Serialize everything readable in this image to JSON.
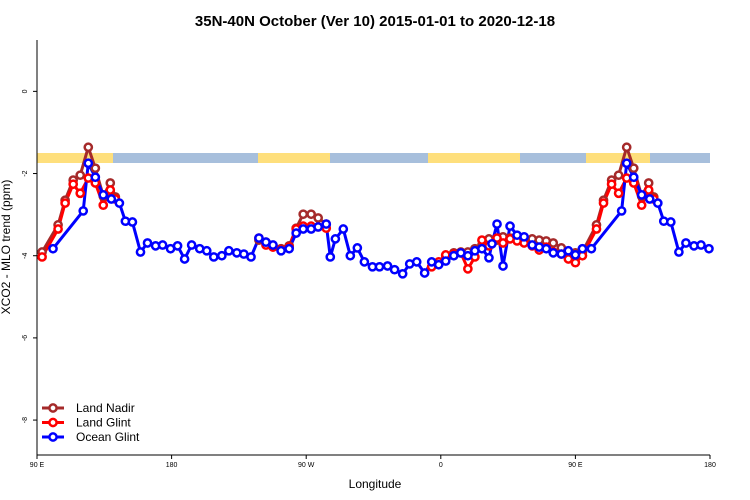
{
  "chart_data": {
    "type": "line",
    "title": "35N-40N October (Ver 10)   2015-01-01 to 2020-12-18",
    "x_label": "Longitude",
    "y_label": "XCO2 - MLO trend (ppm)",
    "xlim": [
      90,
      540
    ],
    "ylim": [
      -8.85,
      1.25
    ],
    "xticks": [
      {
        "value": 90,
        "label": "90 E"
      },
      180,
      {
        "value": 270,
        "label": "90 W"
      },
      {
        "value": 360,
        "label": "0"
      },
      {
        "value": 450,
        "label": "90 E"
      },
      {
        "value": 540,
        "label": "180"
      }
    ],
    "yticks": [
      0,
      -2,
      -4,
      -6,
      -8
    ],
    "legend": "bottom-left",
    "series": [
      {
        "name": "Land Nadir",
        "color": "#a52a2a",
        "x": [
          93.4,
          104.1,
          108.8,
          114.2,
          118.9,
          124.3,
          129.0,
          134.3,
          139.0,
          142.4,
          null,
          238.4,
          243.1,
          247.8,
          253.2,
          258.6,
          263.3,
          268.0,
          273.3,
          278.0,
          283.4,
          null,
          358.6,
          363.3,
          368.7,
          373.4,
          378.1,
          382.8,
          387.5,
          392.2,
          397.6,
          401.6,
          406.3,
          411.0,
          415.7,
          421.1,
          425.8,
          430.5,
          435.2,
          440.6,
          445.3,
          450.0,
          454.7,
          464.1,
          468.8,
          474.2,
          478.9,
          484.3,
          489.0,
          494.3,
          499.0,
          502.4
        ],
        "values": [
          -3.91,
          -3.25,
          -2.65,
          -2.16,
          -2.04,
          -1.36,
          -1.87,
          -2.55,
          -2.23,
          -2.57,
          null,
          -3.62,
          -3.67,
          -3.76,
          -3.83,
          -3.76,
          -3.33,
          -2.99,
          -2.99,
          -3.08,
          -3.23,
          null,
          -4.2,
          -4.0,
          -3.93,
          -3.91,
          -3.91,
          -3.83,
          -3.74,
          -3.59,
          -3.62,
          -3.54,
          -3.57,
          -3.57,
          -3.59,
          -3.59,
          -3.62,
          -3.64,
          -3.69,
          -3.81,
          -3.91,
          -3.93,
          -3.91,
          -3.25,
          -2.65,
          -2.16,
          -2.04,
          -1.36,
          -1.87,
          -2.55,
          -2.23,
          -2.57
        ]
      },
      {
        "name": "Land Glint",
        "color": "#ff0000",
        "x": [
          93.4,
          104.1,
          108.8,
          114.2,
          118.9,
          124.3,
          129.0,
          134.3,
          139.0,
          142.4,
          null,
          238.4,
          243.1,
          247.8,
          253.2,
          258.6,
          263.3,
          268.0,
          273.3,
          278.0,
          283.4,
          null,
          353.9,
          358.6,
          363.3,
          368.7,
          373.4,
          378.1,
          382.8,
          387.5,
          392.2,
          397.6,
          401.6,
          406.3,
          411.0,
          415.7,
          421.1,
          425.8,
          430.5,
          435.2,
          440.6,
          445.3,
          450.0,
          454.7,
          464.1,
          468.8,
          474.2,
          478.9,
          484.3,
          489.0,
          494.3,
          499.0,
          502.4
        ],
        "values": [
          -4.03,
          -3.35,
          -2.72,
          -2.26,
          -2.48,
          -2.11,
          -2.23,
          -2.77,
          -2.4,
          -2.62,
          null,
          -3.57,
          -3.74,
          -3.79,
          -3.86,
          -3.79,
          -3.35,
          -3.28,
          -3.28,
          -3.3,
          -3.33,
          null,
          -4.27,
          -4.15,
          -3.98,
          -3.96,
          -3.93,
          -4.32,
          -4.03,
          -3.62,
          -3.76,
          -3.57,
          -3.69,
          -3.59,
          -3.64,
          -3.69,
          -3.76,
          -3.86,
          -3.79,
          -3.91,
          -3.96,
          -4.08,
          -4.17,
          -4.0,
          -3.35,
          -2.72,
          -2.26,
          -2.48,
          -2.11,
          -2.23,
          -2.77,
          -2.4,
          -2.62
        ]
      },
      {
        "name": "Ocean Glint",
        "color": "#0000ff",
        "x": [
          100.7,
          120.9,
          124.3,
          129.0,
          134.3,
          139.7,
          145.1,
          149.1,
          153.8,
          159.2,
          163.9,
          169.3,
          174.0,
          179.3,
          184.0,
          188.7,
          193.4,
          198.8,
          203.5,
          208.2,
          213.6,
          218.3,
          223.6,
          228.3,
          233.1,
          238.4,
          243.1,
          247.8,
          253.2,
          258.6,
          263.3,
          268.0,
          273.3,
          278.0,
          283.4,
          286.1,
          289.5,
          294.8,
          299.5,
          304.2,
          308.9,
          314.3,
          319.0,
          324.4,
          329.1,
          334.5,
          339.2,
          343.9,
          349.2,
          353.9,
          358.6,
          363.3,
          368.7,
          373.4,
          378.1,
          382.8,
          387.5,
          392.2,
          394.2,
          397.6,
          401.6,
          406.3,
          411.0,
          415.7,
          421.1,
          425.8,
          430.5,
          435.2,
          440.6,
          445.3,
          450.0,
          454.7,
          460.7,
          480.9,
          484.3,
          489.0,
          494.3,
          499.7,
          505.1,
          509.1,
          513.8,
          519.2,
          523.9,
          529.3,
          534.0,
          539.3
        ],
        "values": [
          -3.83,
          -2.91,
          -1.75,
          -2.09,
          -2.52,
          -2.62,
          -2.72,
          -3.16,
          -3.18,
          -3.91,
          -3.69,
          -3.76,
          -3.74,
          -3.83,
          -3.76,
          -4.08,
          -3.74,
          -3.83,
          -3.88,
          -4.03,
          -4.0,
          -3.88,
          -3.93,
          -3.96,
          -4.03,
          -3.57,
          -3.67,
          -3.74,
          -3.88,
          -3.83,
          -3.45,
          -3.35,
          -3.35,
          -3.3,
          -3.23,
          -4.03,
          -3.59,
          -3.35,
          -4.0,
          -3.81,
          -4.15,
          -4.27,
          -4.27,
          -4.25,
          -4.34,
          -4.44,
          -4.2,
          -4.15,
          -4.42,
          -4.15,
          -4.22,
          -4.13,
          -4.0,
          -3.93,
          -4.0,
          -3.88,
          -3.83,
          -4.05,
          -3.71,
          -3.23,
          -4.25,
          -3.28,
          -3.5,
          -3.54,
          -3.74,
          -3.79,
          -3.83,
          -3.93,
          -3.96,
          -3.88,
          -3.98,
          -3.83,
          -3.83,
          -2.91,
          -1.75,
          -2.09,
          -2.52,
          -2.62,
          -2.72,
          -3.16,
          -3.18,
          -3.91,
          -3.69,
          -3.76,
          -3.74,
          -3.83
        ]
      }
    ]
  }
}
